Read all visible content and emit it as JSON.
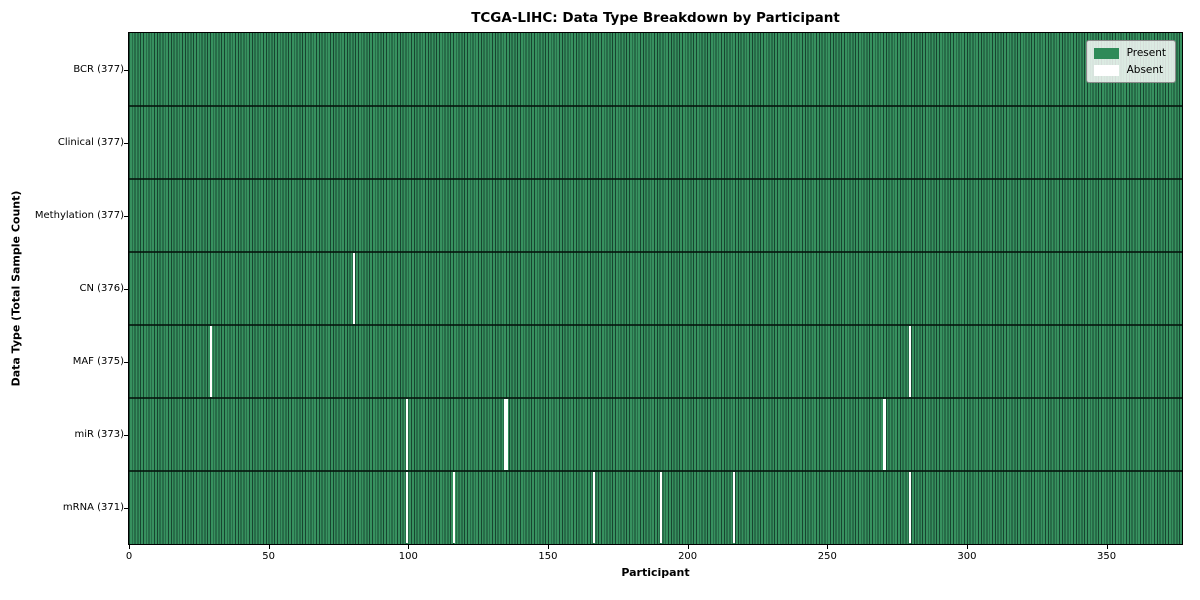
{
  "title": "TCGA-LIHC: Data Type Breakdown by Participant",
  "chart_data": {
    "type": "heatmap",
    "title": "TCGA-LIHC: Data Type Breakdown by Participant",
    "xlabel": "Participant",
    "ylabel": "Data Type (Total Sample Count)",
    "x_ticks": [
      0,
      50,
      100,
      150,
      200,
      250,
      300,
      350
    ],
    "x_range": [
      0,
      377
    ],
    "n_participants": 377,
    "grid": false,
    "legend_position": "upper right",
    "rows": [
      {
        "label": "BCR (377)",
        "data_type": "BCR",
        "present_count": 377,
        "absent_participants": []
      },
      {
        "label": "Clinical (377)",
        "data_type": "Clinical",
        "present_count": 377,
        "absent_participants": []
      },
      {
        "label": "Methylation (377)",
        "data_type": "Methylation",
        "present_count": 377,
        "absent_participants": []
      },
      {
        "label": "CN (376)",
        "data_type": "CN",
        "present_count": 376,
        "absent_participants": [
          80
        ]
      },
      {
        "label": "MAF (375)",
        "data_type": "MAF",
        "present_count": 375,
        "absent_participants": [
          29,
          279
        ]
      },
      {
        "label": "miR (373)",
        "data_type": "miR",
        "present_count": 373,
        "absent_participants": [
          99,
          134,
          135,
          270
        ]
      },
      {
        "label": "mRNA (371)",
        "data_type": "mRNA",
        "present_count": 371,
        "absent_participants": [
          99,
          116,
          166,
          190,
          216,
          279
        ]
      }
    ],
    "legend": [
      {
        "label": "Present",
        "color": "#2e8a58"
      },
      {
        "label": "Absent",
        "color": "#ffffff"
      }
    ],
    "colors": {
      "present": "#2e8a58",
      "present_stripe_light": "#37915f",
      "cell_edge": "#174630",
      "absent": "#ffffff",
      "frame": "#000000"
    }
  }
}
